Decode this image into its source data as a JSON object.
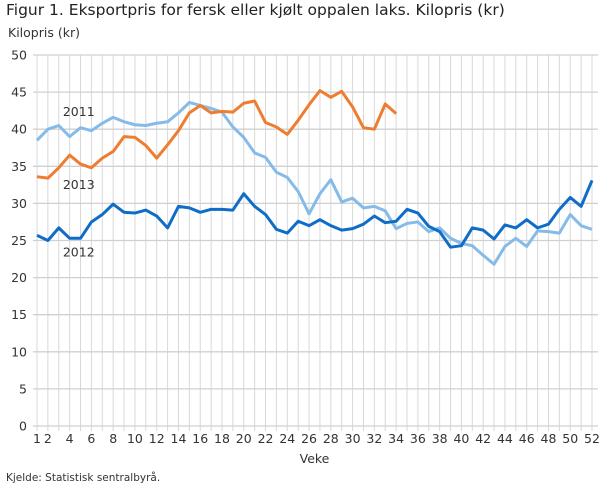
{
  "chart_data": {
    "type": "line",
    "title": "Figur 1. Eksportpris for fersk eller kjølt oppalen laks. Kilopris (kr)",
    "ylabel": "Kilopris (kr)",
    "xlabel": "Veke",
    "source": "Kjelde: Statistisk sentralbyrå.",
    "ylim": [
      0,
      50
    ],
    "yticks": [
      0,
      5,
      10,
      15,
      20,
      25,
      30,
      35,
      40,
      45,
      50
    ],
    "xlim": [
      1,
      52
    ],
    "xticks": [
      1,
      2,
      4,
      6,
      8,
      10,
      12,
      14,
      16,
      18,
      20,
      22,
      24,
      26,
      28,
      30,
      32,
      34,
      36,
      38,
      40,
      42,
      44,
      46,
      48,
      50,
      52
    ],
    "grid": true,
    "legend": "inline labels",
    "series": [
      {
        "name": "2011",
        "color": "#85bbe8",
        "label_week": 3,
        "label_value": 42.3,
        "values": [
          38.5,
          40,
          40.5,
          39,
          40.2,
          39.8,
          40.8,
          41.6,
          41,
          40.6,
          40.5,
          40.8,
          41,
          42.2,
          43.6,
          43.2,
          42.8,
          42.3,
          40.3,
          38.9,
          36.8,
          36.2,
          34.2,
          33.5,
          31.6,
          28.6,
          31.3,
          33.2,
          30.2,
          30.7,
          29.4,
          29.6,
          29,
          26.6,
          27.3,
          27.5,
          26.2,
          26.7,
          25.3,
          24.6,
          24.3,
          23,
          21.8,
          24.2,
          25.3,
          24.2,
          26.3,
          26.2,
          26,
          28.5,
          27,
          26.5
        ]
      },
      {
        "name": "2012",
        "color": "#0f6dc8",
        "label_week": 3,
        "label_value": 23.4,
        "values": [
          25.7,
          25,
          26.7,
          25.3,
          25.3,
          27.5,
          28.5,
          29.9,
          28.8,
          28.7,
          29.1,
          28.3,
          26.7,
          29.6,
          29.4,
          28.8,
          29.2,
          29.2,
          29.1,
          31.3,
          29.6,
          28.5,
          26.5,
          26,
          27.6,
          27,
          27.8,
          27,
          26.4,
          26.6,
          27.2,
          28.3,
          27.4,
          27.6,
          29.2,
          28.7,
          26.9,
          26.2,
          24.1,
          24.3,
          26.7,
          26.4,
          25.2,
          27.1,
          26.7,
          27.8,
          26.7,
          27.2,
          29.2,
          30.8,
          29.6,
          33.1
        ]
      },
      {
        "name": "2013",
        "color": "#ee7d2f",
        "label_week": 3,
        "label_value": 32.5,
        "values": [
          33.6,
          33.4,
          34.8,
          36.5,
          35.3,
          34.8,
          36.1,
          37,
          39,
          38.9,
          37.8,
          36.1,
          37.9,
          39.8,
          42.2,
          43.2,
          42.2,
          42.4,
          42.3,
          43.5,
          43.8,
          40.9,
          40.3,
          39.3,
          41.2,
          43.3,
          45.2,
          44.3,
          45.1,
          43,
          40.2,
          40,
          43.4,
          42.1
        ]
      }
    ]
  }
}
